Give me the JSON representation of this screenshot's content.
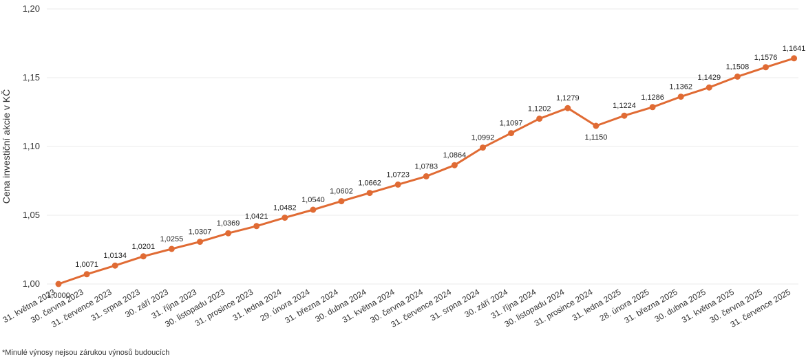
{
  "chart_data": {
    "type": "line",
    "ylabel": "Cena investiční akcie v KČ",
    "ylim": [
      1.0,
      1.2
    ],
    "yticks": [
      "1,00",
      "1,05",
      "1,10",
      "1,15",
      "1,20"
    ],
    "grid": true,
    "categories": [
      "31. května 2023",
      "30. června 2023",
      "31. července 2023",
      "31. srpna 2023",
      "30. září 2023",
      "31. října 2023",
      "30. listopadu 2023",
      "31. prosince 2023",
      "31. ledna 2024",
      "29. února 2024",
      "31. března 2024",
      "30. dubna 2024",
      "31. května 2024",
      "30. června 2024",
      "31. července 2024",
      "31. srpna 2024",
      "30. září 2024",
      "31. října 2024",
      "30. listopadu 2024",
      "31. prosince 2024",
      "31. ledna 2025",
      "28. února 2025",
      "31. března 2025",
      "30. dubna 2025",
      "31. května 2025",
      "30. června 2025",
      "31. července 2025"
    ],
    "values": [
      1.0,
      1.0071,
      1.0134,
      1.0201,
      1.0255,
      1.0307,
      1.0369,
      1.0421,
      1.0482,
      1.054,
      1.0602,
      1.0662,
      1.0723,
      1.0783,
      1.0864,
      1.0992,
      1.1097,
      1.1202,
      1.1279,
      1.115,
      1.1224,
      1.1286,
      1.1362,
      1.1429,
      1.1508,
      1.1576,
      1.1641
    ],
    "data_labels": [
      "1,0000",
      "1,0071",
      "1,0134",
      "1,0201",
      "1,0255",
      "1,0307",
      "1,0369",
      "1,0421",
      "1,0482",
      "1,0540",
      "1,0602",
      "1,0662",
      "1,0723",
      "1,0783",
      "1,0864",
      "1,0992",
      "1,1097",
      "1,1202",
      "1,1279",
      "1,1150",
      "1,1224",
      "1,1286",
      "1,1362",
      "1,1429",
      "1,1508",
      "1,1576",
      "1,1641"
    ],
    "line_color": "#e06b34"
  },
  "footnote": "*Minulé výnosy nejsou zárukou výnosů budoucích"
}
